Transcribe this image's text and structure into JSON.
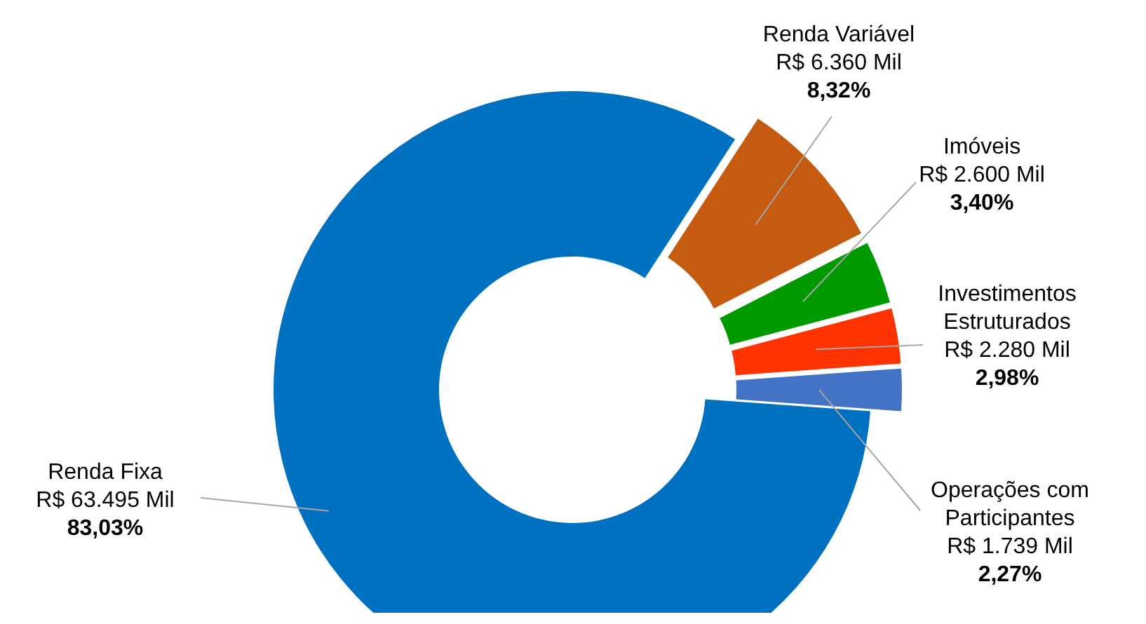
{
  "chart_data": {
    "type": "donut",
    "categories": [
      "Renda Variável",
      "Imóveis",
      "Investimentos Estruturados",
      "Operações com Participantes",
      "Renda Fixa"
    ],
    "values": [
      6360,
      2600,
      2280,
      1739,
      63495
    ],
    "colors": [
      "#c55a11",
      "#009900",
      "#ff3300",
      "#4472c4",
      "#0070c0"
    ],
    "value_labels": [
      "R$ 6.360 Mil\n8,32%",
      "R$ 2.600 Mil\n3,40%",
      "R$ 2.280 Mil\n2,98%",
      "R$ 1.739 Mil\n2,27%",
      "R$ 63.495 Mil\n83,03%"
    ],
    "legend": false
  }
}
